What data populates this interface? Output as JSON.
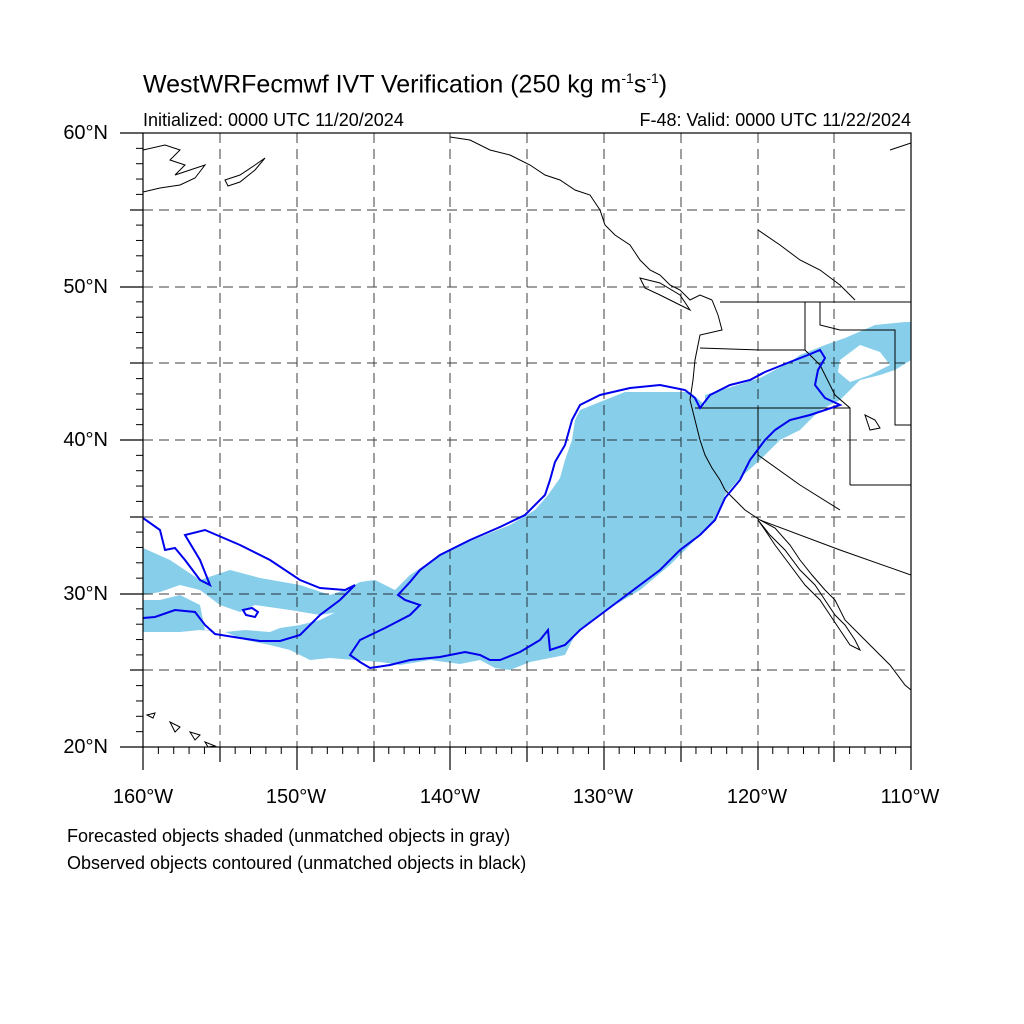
{
  "title": {
    "prefix": "WestWRFecmwf IVT Verification (250 kg m",
    "sup1": "-1",
    "mid": "s",
    "sup2": "-1",
    "suffix": ")"
  },
  "initialized": "Initialized: 0000 UTC 11/20/2024",
  "valid": "F-48: Valid: 0000 UTC 11/22/2024",
  "lat_labels": [
    "60°N",
    "50°N",
    "40°N",
    "30°N",
    "20°N"
  ],
  "lon_labels": [
    "160°W",
    "150°W",
    "140°W",
    "130°W",
    "120°W",
    "110°W"
  ],
  "notes": [
    "Forecasted objects shaded (unmatched objects in gray)",
    "Observed objects contoured (unmatched objects in black)"
  ],
  "colors": {
    "forecast_fill": "#87ceeb",
    "observed_contour": "#0000ee",
    "coastline": "#000000",
    "grid": "#000000"
  },
  "map": {
    "lon_range": [
      -160,
      -110
    ],
    "lat_range": [
      20,
      60
    ],
    "grid": "dashed"
  }
}
